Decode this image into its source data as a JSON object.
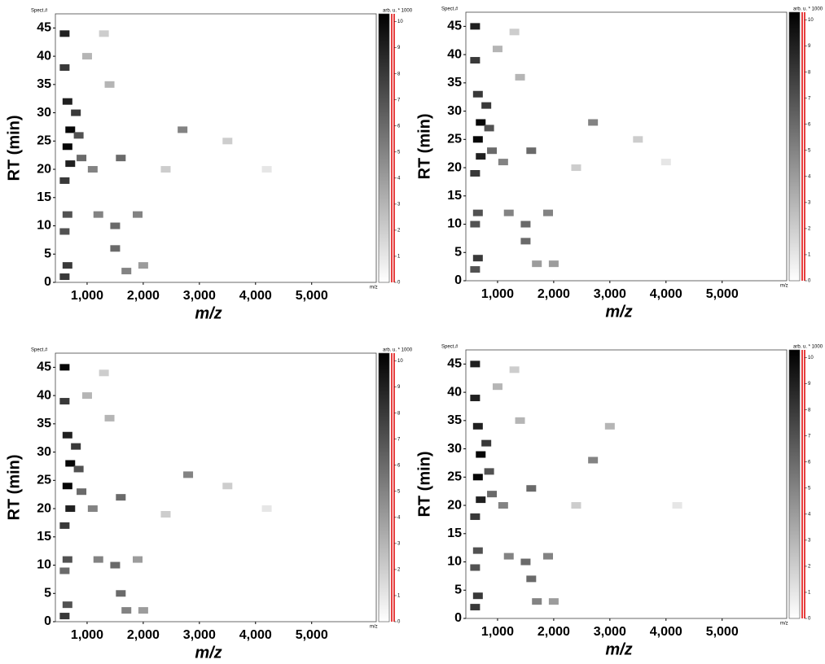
{
  "chart_data": [
    {
      "type": "heatmap",
      "corner_label": "Spect.#",
      "colorbar_label": "arb. u. * 1000",
      "colorbar_unit": "m/z",
      "y_label": "RT (min)",
      "x_label": "m/z",
      "xlim": [
        435,
        6150
      ],
      "ylim": [
        0,
        47.5
      ],
      "clim": [
        0,
        10.3
      ],
      "xticks": [
        {
          "value": 1000,
          "label": "1,000"
        },
        {
          "value": 2000,
          "label": "2,000"
        },
        {
          "value": 3000,
          "label": "3,000"
        },
        {
          "value": 4000,
          "label": "4,000"
        },
        {
          "value": 5000,
          "label": "5,000"
        }
      ],
      "yticks": [
        0,
        5,
        10,
        15,
        20,
        25,
        30,
        35,
        40,
        45
      ],
      "cticks": [
        0,
        1,
        2,
        3,
        4,
        5,
        6,
        7,
        8,
        9,
        10
      ],
      "x": [
        600,
        600,
        650,
        700,
        650,
        700,
        600,
        650,
        600,
        650,
        600,
        800,
        850,
        900,
        1100,
        1200,
        1500,
        1500,
        1600,
        1700,
        1900,
        2000,
        2700,
        1000,
        1400,
        2400,
        3500,
        4200,
        1300
      ],
      "y": [
        44,
        38,
        32,
        27,
        24,
        21,
        18,
        12,
        9,
        3,
        1,
        30,
        26,
        22,
        20,
        12,
        10,
        6,
        22,
        2,
        12,
        3,
        27,
        40,
        35,
        20,
        25,
        20,
        44
      ],
      "values": [
        9,
        8,
        9,
        10,
        10,
        9,
        8,
        7,
        7,
        8,
        8,
        8,
        7,
        6,
        5,
        5,
        6,
        6,
        6,
        5,
        5,
        4,
        5,
        3,
        3,
        2,
        2,
        1,
        2
      ]
    },
    {
      "type": "heatmap",
      "corner_label": "Spect.#",
      "colorbar_label": "arb. u. * 1000",
      "colorbar_unit": "m/z",
      "y_label": "RT (min)",
      "x_label": "m/z",
      "xlim": [
        435,
        6150
      ],
      "ylim": [
        0,
        47.5
      ],
      "clim": [
        0,
        10.3
      ],
      "xticks": [
        {
          "value": 1000,
          "label": "1,000"
        },
        {
          "value": 2000,
          "label": "2,000"
        },
        {
          "value": 3000,
          "label": "3,000"
        },
        {
          "value": 4000,
          "label": "4,000"
        },
        {
          "value": 5000,
          "label": "5,000"
        }
      ],
      "yticks": [
        0,
        5,
        10,
        15,
        20,
        25,
        30,
        35,
        40,
        45
      ],
      "cticks": [
        0,
        1,
        2,
        3,
        4,
        5,
        6,
        7,
        8,
        9,
        10
      ],
      "x": [
        600,
        600,
        650,
        700,
        650,
        700,
        600,
        650,
        600,
        650,
        600,
        800,
        850,
        900,
        1100,
        1200,
        1500,
        1500,
        1600,
        1700,
        1900,
        2000,
        2700,
        1000,
        1400,
        2400,
        3500,
        4000,
        1300
      ],
      "y": [
        45,
        39,
        33,
        28,
        25,
        22,
        19,
        12,
        10,
        4,
        2,
        31,
        27,
        23,
        21,
        12,
        10,
        7,
        23,
        3,
        12,
        3,
        28,
        41,
        36,
        20,
        25,
        21,
        44
      ],
      "values": [
        9,
        8,
        8,
        10,
        10,
        9,
        8,
        7,
        7,
        8,
        7,
        8,
        7,
        6,
        5,
        5,
        6,
        6,
        6,
        4,
        5,
        4,
        5,
        3,
        3,
        2,
        2,
        1,
        2
      ]
    },
    {
      "type": "heatmap",
      "corner_label": "Spect.#",
      "colorbar_label": "arb. u. * 1000",
      "colorbar_unit": "m/z",
      "y_label": "RT (min)",
      "x_label": "m/z",
      "xlim": [
        435,
        6150
      ],
      "ylim": [
        0,
        47.5
      ],
      "clim": [
        0,
        10.3
      ],
      "xticks": [
        {
          "value": 1000,
          "label": "1,000"
        },
        {
          "value": 2000,
          "label": "2,000"
        },
        {
          "value": 3000,
          "label": "3,000"
        },
        {
          "value": 4000,
          "label": "4,000"
        },
        {
          "value": 5000,
          "label": "5,000"
        }
      ],
      "yticks": [
        0,
        5,
        10,
        15,
        20,
        25,
        30,
        35,
        40,
        45
      ],
      "cticks": [
        0,
        1,
        2,
        3,
        4,
        5,
        6,
        7,
        8,
        9,
        10
      ],
      "x": [
        600,
        600,
        650,
        700,
        650,
        700,
        600,
        650,
        600,
        650,
        600,
        800,
        850,
        900,
        1100,
        1200,
        1500,
        1600,
        1600,
        1700,
        1900,
        2000,
        2800,
        1000,
        1400,
        2400,
        3500,
        4200,
        1300
      ],
      "y": [
        45,
        39,
        33,
        28,
        24,
        20,
        17,
        11,
        9,
        3,
        1,
        31,
        27,
        23,
        20,
        11,
        10,
        5,
        22,
        2,
        11,
        2,
        26,
        40,
        36,
        19,
        24,
        20,
        44
      ],
      "values": [
        10,
        8,
        9,
        10,
        10,
        9,
        8,
        7,
        6,
        7,
        8,
        8,
        7,
        6,
        5,
        5,
        6,
        6,
        6,
        5,
        4,
        4,
        5,
        3,
        3,
        2,
        2,
        1,
        2
      ]
    },
    {
      "type": "heatmap",
      "corner_label": "Spect.#",
      "colorbar_label": "arb. u. * 1000",
      "colorbar_unit": "m/z",
      "y_label": "RT (min)",
      "x_label": "m/z",
      "xlim": [
        435,
        6150
      ],
      "ylim": [
        0,
        47.5
      ],
      "clim": [
        0,
        10.3
      ],
      "xticks": [
        {
          "value": 1000,
          "label": "1,000"
        },
        {
          "value": 2000,
          "label": "2,000"
        },
        {
          "value": 3000,
          "label": "3,000"
        },
        {
          "value": 4000,
          "label": "4,000"
        },
        {
          "value": 5000,
          "label": "5,000"
        }
      ],
      "yticks": [
        0,
        5,
        10,
        15,
        20,
        25,
        30,
        35,
        40,
        45
      ],
      "cticks": [
        0,
        1,
        2,
        3,
        4,
        5,
        6,
        7,
        8,
        9,
        10
      ],
      "x": [
        600,
        600,
        650,
        700,
        650,
        700,
        600,
        650,
        600,
        650,
        600,
        800,
        850,
        900,
        1100,
        1200,
        1500,
        1600,
        1600,
        1700,
        1900,
        2000,
        2700,
        1000,
        1400,
        2400,
        3000,
        4200,
        1300
      ],
      "y": [
        45,
        39,
        34,
        29,
        25,
        21,
        18,
        12,
        9,
        4,
        2,
        31,
        26,
        22,
        20,
        11,
        10,
        7,
        23,
        3,
        11,
        3,
        28,
        41,
        35,
        20,
        34,
        20,
        44
      ],
      "values": [
        9,
        9,
        9,
        10,
        10,
        9,
        8,
        7,
        7,
        8,
        8,
        8,
        7,
        6,
        5,
        5,
        6,
        6,
        6,
        5,
        5,
        4,
        5,
        3,
        3,
        2,
        3,
        1,
        2
      ]
    }
  ]
}
